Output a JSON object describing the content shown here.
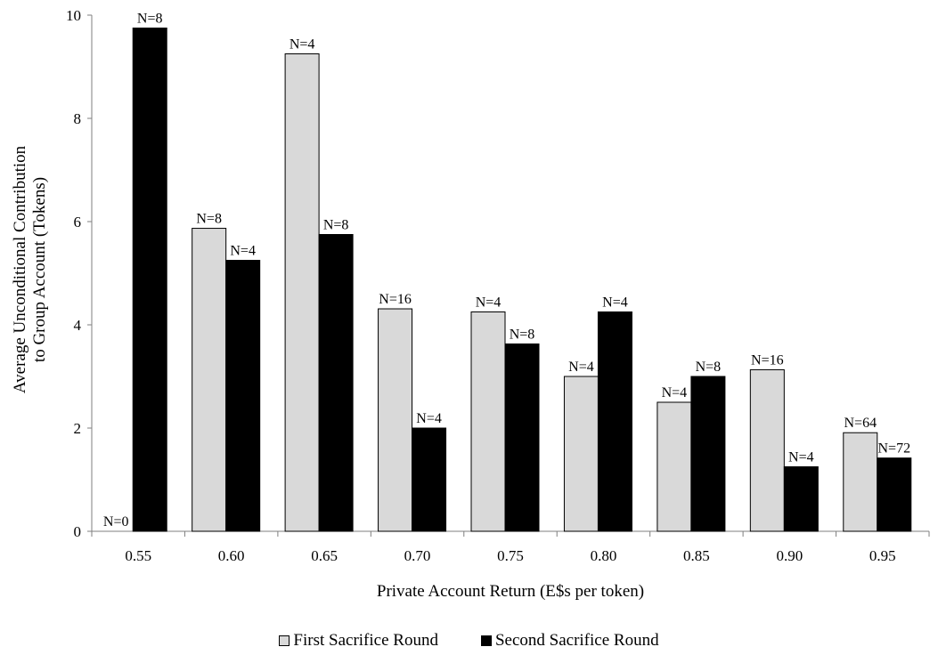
{
  "chart_data": {
    "type": "bar",
    "xlabel": "Private Account Return (E$s per token)",
    "ylabel": "Average Unconditional Contribution\nto Group Account (Tokens)",
    "ylim": [
      0,
      10
    ],
    "yticks": [
      "0",
      "2",
      "4",
      "6",
      "8",
      "10"
    ],
    "categories": [
      "0.55",
      "0.60",
      "0.65",
      "0.70",
      "0.75",
      "0.80",
      "0.85",
      "0.90",
      "0.95"
    ],
    "series": [
      {
        "name": "First Sacrifice Round",
        "color": "#d9d9d9",
        "values": [
          0,
          5.87,
          9.25,
          4.31,
          4.25,
          3.0,
          2.5,
          3.13,
          1.91
        ],
        "labels": [
          "N=0",
          "N=8",
          "N=4",
          "N=16",
          "N=4",
          "N=4",
          "N=4",
          "N=16",
          "N=64"
        ]
      },
      {
        "name": "Second Sacrifice Round",
        "color": "#000000",
        "values": [
          9.75,
          5.25,
          5.75,
          2.0,
          3.63,
          4.25,
          3.0,
          1.25,
          1.42
        ],
        "labels": [
          "N=8",
          "N=4",
          "N=8",
          "N=4",
          "N=8",
          "N=4",
          "N=8",
          "N=4",
          "N=72"
        ]
      }
    ],
    "legend_position": "bottom",
    "grid": false
  }
}
